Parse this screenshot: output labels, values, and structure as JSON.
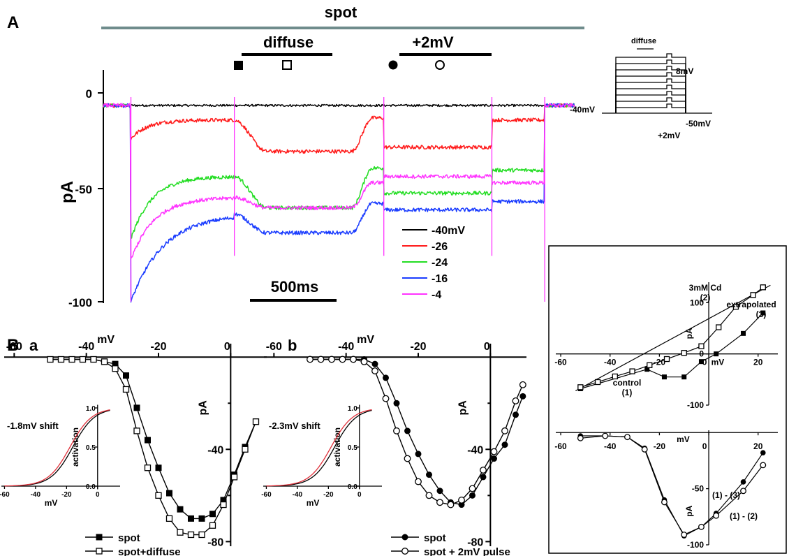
{
  "panels": {
    "A": {
      "label": "A"
    },
    "B": {
      "label": "B",
      "sub_a": "a",
      "sub_b": "b"
    }
  },
  "chart_data": [
    {
      "id": "A",
      "type": "line",
      "ylabel": "pA",
      "yticks": [
        "0",
        "-50",
        "-100"
      ],
      "ylim": [
        -100,
        5
      ],
      "x_range_ms": [
        0,
        2050
      ],
      "bars": {
        "spot": "spot",
        "diffuse": "diffuse",
        "pulse": "+2mV"
      },
      "markers": [
        "filled-square",
        "open-square",
        "filled-circle",
        "open-circle"
      ],
      "scalebar": "500ms",
      "events_ms": {
        "step_on": 120,
        "diffuse_on": 570,
        "diffuse_off": 1080,
        "pulse_on": 1220,
        "pulse_off": 1690,
        "step_off": 1920
      },
      "series": [
        {
          "name": "-40mV",
          "color": "#000000",
          "levels": {
            "base": -6,
            "step": -6,
            "diffuse": -6,
            "gap": -6,
            "pulse": -6,
            "after": -6
          },
          "tau": 60,
          "peak": -6
        },
        {
          "name": "-26",
          "color": "#ff1a1a",
          "levels": {
            "base": -6,
            "step": -13,
            "diffuse": -28,
            "gap": -12,
            "pulse": -26,
            "after": -13
          },
          "tau": 70,
          "peak": -22
        },
        {
          "name": "-24",
          "color": "#22dd22",
          "levels": {
            "base": -6,
            "step": -40,
            "diffuse": -55,
            "gap": -36,
            "pulse": -48,
            "after": -37
          },
          "tau": 90,
          "peak": -70
        },
        {
          "name": "-16",
          "color": "#1a3cff",
          "levels": {
            "base": -6,
            "step": -58,
            "diffuse": -67,
            "gap": -53,
            "pulse": -56,
            "after": -52
          },
          "tau": 140,
          "peak": -100
        },
        {
          "name": "-4",
          "color": "#ff33ff",
          "levels": {
            "base": -6,
            "step": -50,
            "diffuse": -55,
            "gap": -43,
            "pulse": -40,
            "after": -43
          },
          "tau": 100,
          "peak": -80
        }
      ]
    },
    {
      "id": "A-protocol",
      "type": "diagram",
      "labels": {
        "diffuse": "diffuse",
        "top": "8mV",
        "hold": "-40mV",
        "bottom": "-50mV",
        "pulse": "+2mV"
      },
      "levels": 9
    },
    {
      "id": "Ba",
      "type": "scatter",
      "xlabel": "mV",
      "ylabel": "pA",
      "xlim": [
        -62,
        10
      ],
      "ylim": [
        -82,
        4
      ],
      "xticks": [
        "-60",
        "-40",
        "-20",
        "0"
      ],
      "yticks": [
        "-40",
        "-80"
      ],
      "zero_label": "0",
      "series": [
        {
          "name": "spot",
          "marker": "filled-square",
          "x": [
            -50,
            -47,
            -44,
            -41,
            -38,
            -35,
            -32,
            -29,
            -26,
            -23,
            -20,
            -17,
            -14,
            -11,
            -8,
            -5,
            -2,
            1,
            4,
            7
          ],
          "y": [
            -1,
            -1,
            -1,
            -1,
            -1,
            -2,
            -3,
            -8,
            -22,
            -36,
            -48,
            -59,
            -66,
            -70,
            -70,
            -68,
            -62,
            -51,
            -39,
            -28
          ]
        },
        {
          "name": "spot+diffuse",
          "marker": "open-square",
          "x": [
            -50,
            -47,
            -44,
            -41,
            -38,
            -35,
            -32,
            -29,
            -26,
            -23,
            -20,
            -17,
            -14,
            -11,
            -8,
            -5,
            -2,
            1,
            4,
            7
          ],
          "y": [
            -1,
            -1,
            -1,
            -1,
            -1,
            -2,
            -5,
            -14,
            -32,
            -48,
            -60,
            -70,
            -76,
            -77,
            -77,
            -73,
            -64,
            -52,
            -40,
            -28
          ]
        }
      ],
      "inset": {
        "ylabel": "activation",
        "xlabel": "mV",
        "annotation": "-1.8mV shift",
        "xticks": [
          "-60",
          "-40",
          "-20",
          "0"
        ],
        "yticks": [
          "0.0",
          "0.5",
          "1.0"
        ],
        "shift": 1.8,
        "v_half": -16,
        "k": 7
      }
    },
    {
      "id": "Bb",
      "type": "scatter",
      "xlabel": "mV",
      "ylabel": "pA",
      "xlim": [
        -62,
        10
      ],
      "ylim": [
        -82,
        4
      ],
      "xticks": [
        "-60",
        "-40",
        "-20",
        "0"
      ],
      "yticks": [
        "-40",
        "-80"
      ],
      "zero_label": "0",
      "series": [
        {
          "name": "spot",
          "marker": "filled-circle",
          "x": [
            -50,
            -47,
            -44,
            -41,
            -38,
            -35,
            -32,
            -29,
            -26,
            -23,
            -20,
            -17,
            -14,
            -11,
            -8,
            -5,
            -2,
            1,
            4,
            7,
            9
          ],
          "y": [
            -1,
            -1,
            -1,
            -1,
            -1,
            -1,
            -3,
            -9,
            -20,
            -32,
            -42,
            -51,
            -58,
            -63,
            -64,
            -60,
            -52,
            -44,
            -38,
            -25,
            -17
          ]
        },
        {
          "name": "spot + 2mV pulse",
          "marker": "open-circle",
          "x": [
            -50,
            -47,
            -44,
            -41,
            -38,
            -35,
            -32,
            -29,
            -26,
            -23,
            -20,
            -17,
            -14,
            -11,
            -8,
            -5,
            -2,
            1,
            4,
            7,
            9
          ],
          "y": [
            -1,
            -1,
            -1,
            -1,
            -1,
            -2,
            -6,
            -18,
            -32,
            -44,
            -54,
            -60,
            -63,
            -64,
            -62,
            -57,
            -49,
            -41,
            -32,
            -19,
            -12
          ]
        }
      ],
      "inset": {
        "ylabel": "activation",
        "xlabel": "mV",
        "annotation": "-2.3mV shift",
        "xticks": [
          "-60",
          "-40",
          "-20",
          "0"
        ],
        "yticks": [
          "0.0",
          "0.5",
          "1.0"
        ],
        "shift": 2.3,
        "v_half": -16,
        "k": 7
      }
    },
    {
      "id": "C-top",
      "type": "scatter",
      "xlabel": "mV",
      "ylabel": "pA",
      "xlim": [
        -62,
        28
      ],
      "ylim": [
        -100,
        140
      ],
      "xticks": [
        "-60",
        "-40",
        "-20",
        "0",
        "20"
      ],
      "yticks": [
        "100",
        "0",
        "-100"
      ],
      "annotations": {
        "cd": "3mM Cd",
        "cd_num": "(2)",
        "extrap": "extrapolated",
        "extrap_num": "(3)",
        "control": "control",
        "control_num": "(1)"
      },
      "series": [
        {
          "name": "control",
          "marker": "filled-square",
          "x": [
            -52,
            -25,
            -18,
            -10,
            -3,
            3,
            14,
            22
          ],
          "y": [
            -68,
            -30,
            -45,
            -45,
            -15,
            0,
            40,
            80
          ]
        },
        {
          "name": "3mM Cd",
          "marker": "open-square",
          "x": [
            -52,
            -45,
            -38,
            -31,
            -24,
            -17,
            -10,
            -3,
            4,
            11,
            18,
            22
          ],
          "y": [
            -65,
            -55,
            -44,
            -34,
            -22,
            -10,
            2,
            15,
            52,
            92,
            115,
            130
          ]
        },
        {
          "name": "extrapolated",
          "marker": "none",
          "x": [
            -54,
            25
          ],
          "y": [
            -72,
            134
          ]
        }
      ]
    },
    {
      "id": "C-bottom",
      "type": "scatter",
      "xlabel": "mV",
      "ylabel": "pA",
      "xlim": [
        -62,
        28
      ],
      "ylim": [
        -100,
        2
      ],
      "xticks": [
        "-60",
        "-40",
        "-20",
        "0",
        "20"
      ],
      "yticks": [
        "-50",
        "-100"
      ],
      "annotations": {
        "a": "(1) - (3)",
        "b": "(1) - (2)"
      },
      "series": [
        {
          "name": "(1) - (3)",
          "marker": "filled-circle",
          "x": [
            -52,
            -42,
            -33,
            -26,
            -18,
            -10,
            -3,
            3,
            14,
            22
          ],
          "y": [
            -3,
            -3,
            -4,
            -14,
            -60,
            -92,
            -84,
            -72,
            -44,
            -18
          ]
        },
        {
          "name": "(1) - (2)",
          "marker": "open-circle",
          "x": [
            -52,
            -42,
            -33,
            -26,
            -18,
            -10,
            -3,
            3,
            14,
            22
          ],
          "y": [
            -5,
            -3,
            -4,
            -15,
            -62,
            -91,
            -84,
            -74,
            -52,
            -29
          ]
        }
      ]
    }
  ]
}
